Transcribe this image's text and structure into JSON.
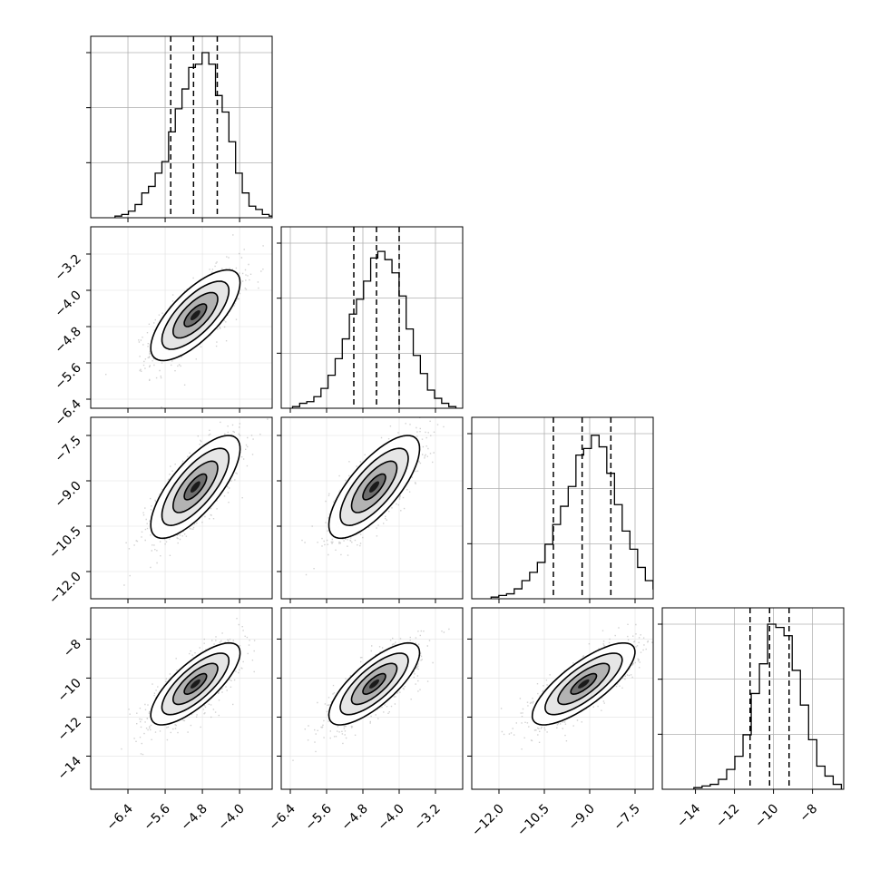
{
  "chart_data": {
    "type": "corner",
    "title": "",
    "dimensions": 4,
    "ranges": [
      [
        -7.2,
        -3.3
      ],
      [
        -6.6,
        -2.6
      ],
      [
        -12.9,
        -6.9
      ],
      [
        -15.7,
        -6.4
      ]
    ],
    "ticks": [
      [
        -6.4,
        -5.6,
        -4.8,
        -4.0
      ],
      [
        -6.4,
        -5.6,
        -4.8,
        -4.0,
        -3.2
      ],
      [
        -12.0,
        -10.5,
        -9.0,
        -7.5
      ],
      [
        -14,
        -12,
        -10,
        -8
      ]
    ],
    "tick_labels": [
      [
        "−6.4",
        "−5.6",
        "−4.8",
        "−4.0"
      ],
      [
        "−6.4",
        "−5.6",
        "−4.8",
        "−4.0",
        "−3.2"
      ],
      [
        "−12.0",
        "−10.5",
        "−9.0",
        "−7.5"
      ],
      [
        "−14",
        "−12",
        "−10",
        "−8"
      ]
    ],
    "means": [
      -4.95,
      -4.55,
      -9.2,
      -10.3
    ],
    "sigmas": [
      0.48,
      0.5,
      0.85,
      1.05
    ],
    "quantile_lines": [
      [
        -5.48,
        -4.99,
        -4.48
      ],
      [
        -5.0,
        -4.5,
        -4.0
      ],
      [
        -10.2,
        -9.25,
        -8.3
      ],
      [
        -11.2,
        -10.2,
        -9.2
      ]
    ],
    "histograms": [
      [
        0.01,
        0.02,
        0.04,
        0.08,
        0.15,
        0.19,
        0.27,
        0.34,
        0.52,
        0.66,
        0.78,
        0.91,
        0.93,
        1.0,
        0.93,
        0.74,
        0.64,
        0.46,
        0.27,
        0.15,
        0.07,
        0.05,
        0.02,
        0.01
      ],
      [
        0.01,
        0.03,
        0.04,
        0.07,
        0.12,
        0.2,
        0.3,
        0.42,
        0.57,
        0.66,
        0.77,
        0.91,
        0.95,
        0.9,
        0.82,
        0.68,
        0.48,
        0.32,
        0.21,
        0.11,
        0.06,
        0.03,
        0.01
      ],
      [
        0.01,
        0.02,
        0.03,
        0.06,
        0.11,
        0.16,
        0.22,
        0.33,
        0.45,
        0.56,
        0.68,
        0.87,
        0.91,
        0.99,
        0.92,
        0.76,
        0.57,
        0.41,
        0.3,
        0.19,
        0.11,
        0.06,
        0.03,
        0.01
      ],
      [
        0.01,
        0.02,
        0.03,
        0.06,
        0.12,
        0.2,
        0.33,
        0.58,
        0.76,
        1.0,
        0.98,
        0.93,
        0.72,
        0.51,
        0.3,
        0.14,
        0.08,
        0.03
      ]
    ],
    "correlations": [
      [
        1,
        0.72,
        0.74,
        0.76
      ],
      [
        0.72,
        1,
        0.74,
        0.76
      ],
      [
        0.74,
        0.74,
        1,
        0.78
      ],
      [
        0.76,
        0.76,
        0.78,
        1
      ]
    ],
    "grid": true,
    "axis_labels": []
  }
}
